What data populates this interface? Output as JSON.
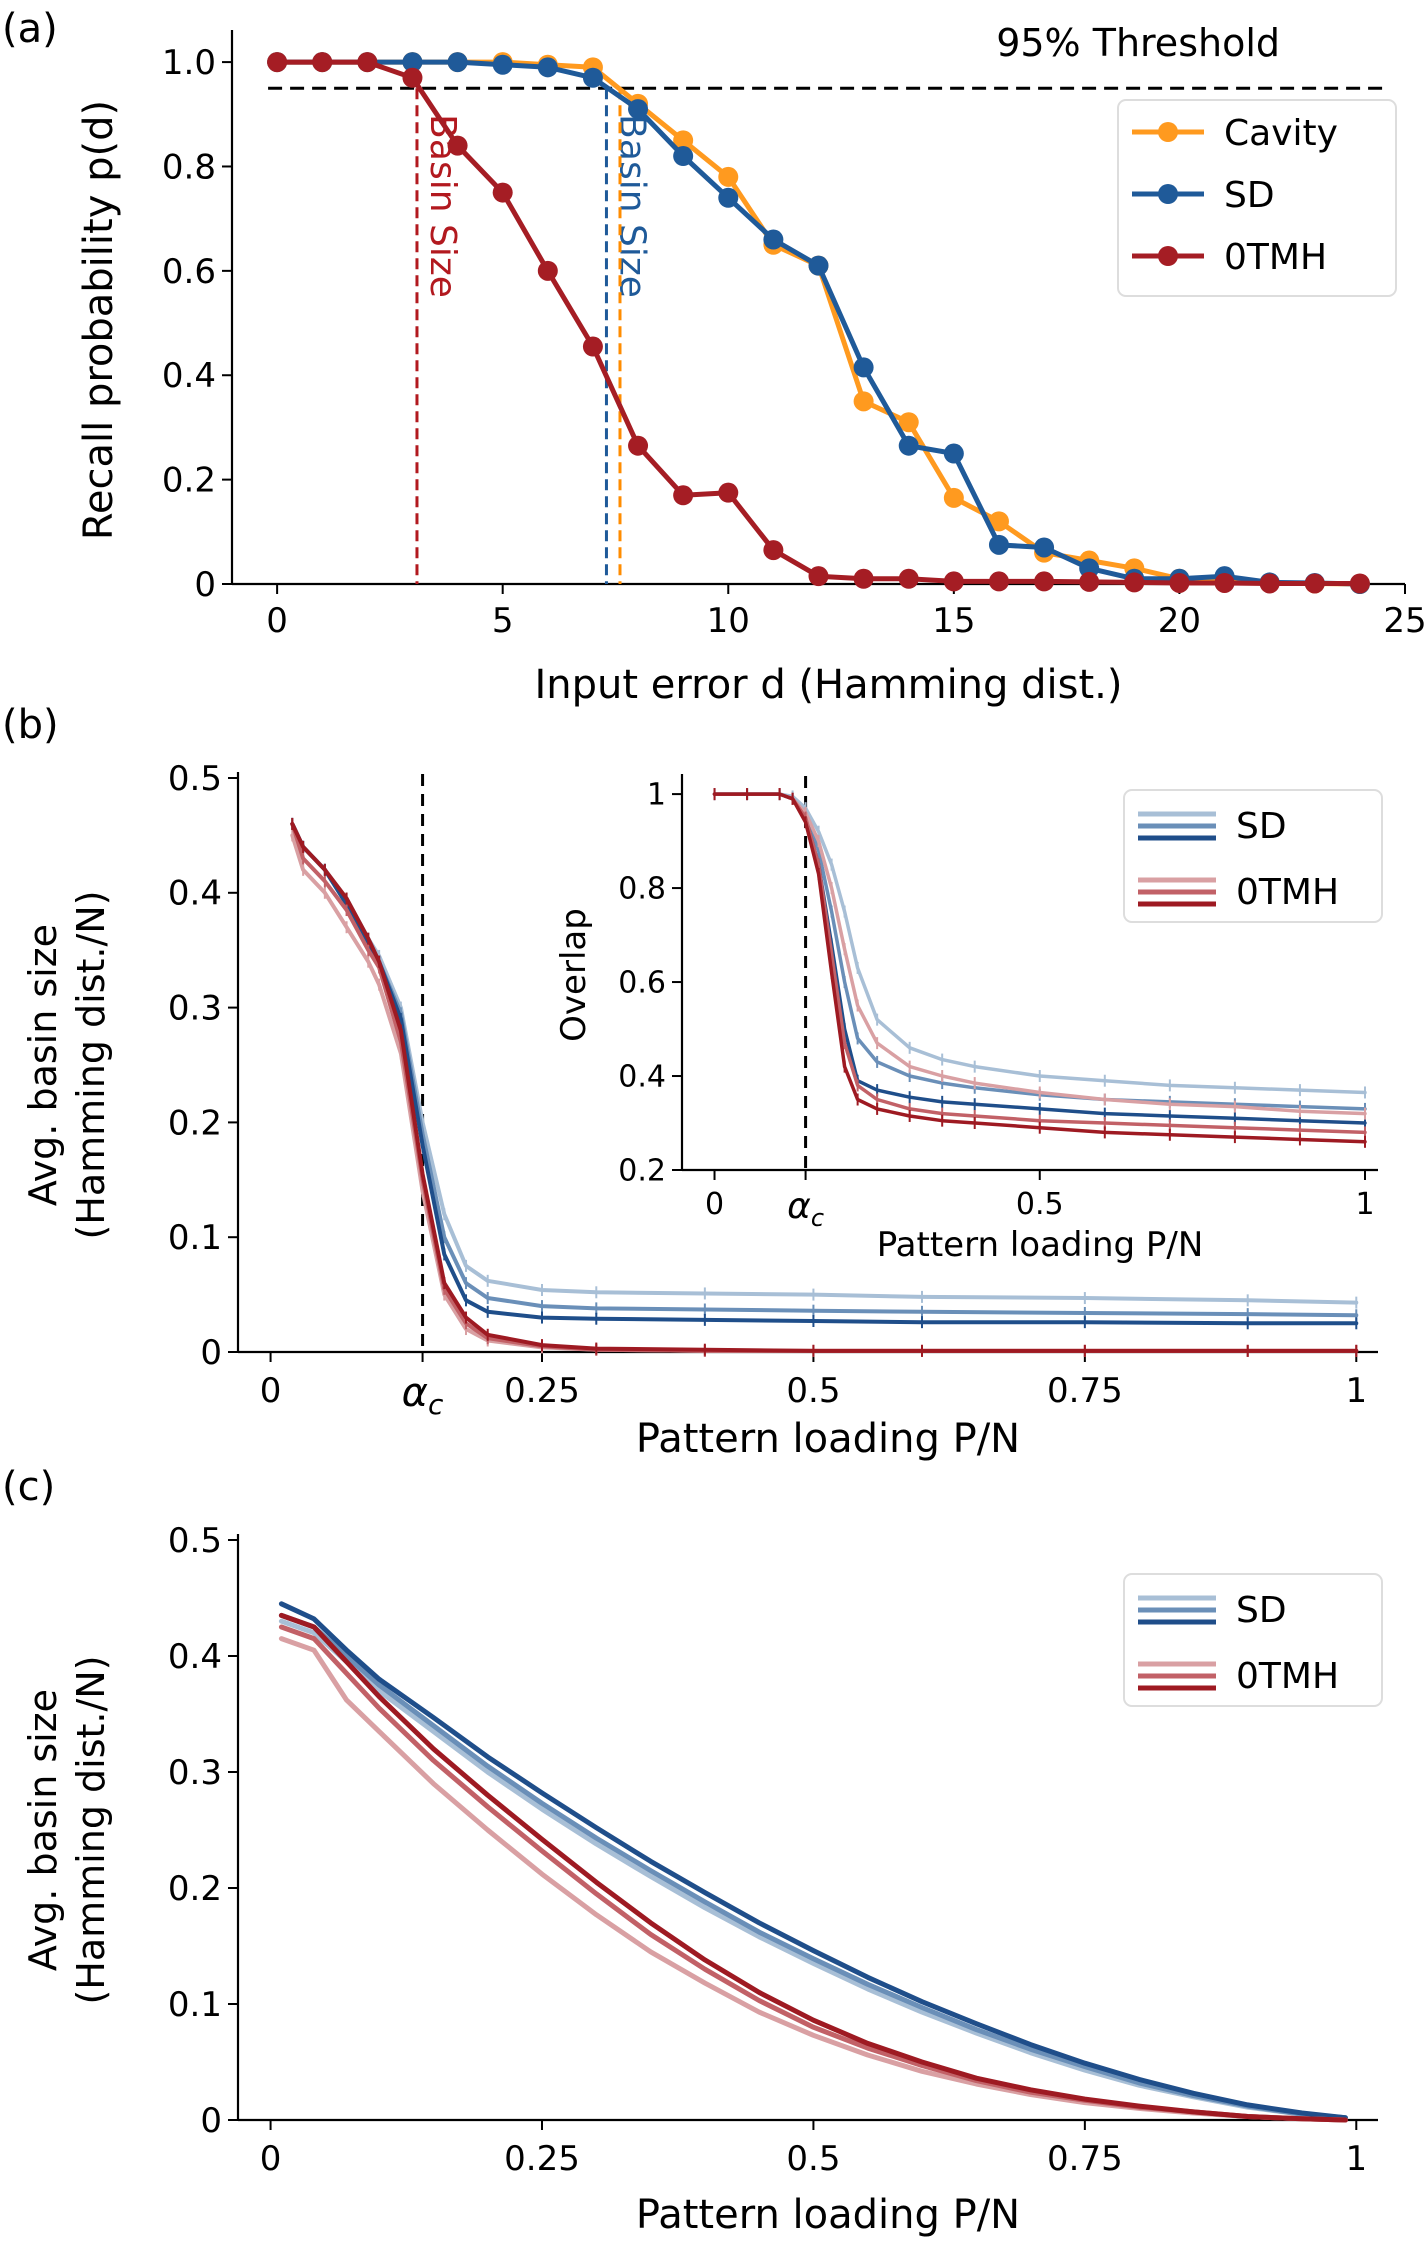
{
  "chart_data": [
    {
      "panel": "(a)",
      "type": "line",
      "xlabel": "Input error d (Hamming dist.)",
      "ylabel": "Recall probability p(d)",
      "xlim": [
        -1,
        25
      ],
      "ylim": [
        0,
        1.05
      ],
      "xticks": [
        0,
        5,
        10,
        15,
        20,
        25
      ],
      "yticks": [
        0,
        0.2,
        0.4,
        0.6,
        0.8,
        1.0
      ],
      "ytick_labels": [
        "0",
        "0.2",
        "0.4",
        "0.6",
        "0.8",
        "1.0"
      ],
      "threshold": {
        "value": 0.95,
        "label": "95% Threshold"
      },
      "basin_markers": [
        {
          "x": 3.1,
          "color": "#b2191f",
          "label": "Basin Size"
        },
        {
          "x": 7.3,
          "color": "#1f5a99",
          "label": "Basin Size"
        },
        {
          "x": 7.6,
          "color": "#ff8c00",
          "label": ""
        }
      ],
      "legend": {
        "position": "upper-right"
      },
      "series": [
        {
          "name": "Cavity",
          "color": "#ff9a1f",
          "x": [
            0,
            1,
            2,
            3,
            4,
            5,
            6,
            7,
            8,
            9,
            10,
            11,
            12,
            13,
            14,
            15,
            16,
            17,
            18,
            19,
            20,
            21,
            22,
            23,
            24
          ],
          "y": [
            1.0,
            1.0,
            1.0,
            1.0,
            1.0,
            1.0,
            0.995,
            0.99,
            0.92,
            0.85,
            0.78,
            0.65,
            0.61,
            0.35,
            0.31,
            0.165,
            0.12,
            0.06,
            0.045,
            0.03,
            0.01,
            0.005,
            0.002,
            0.001,
            0.0
          ]
        },
        {
          "name": "SD",
          "color": "#1f5a99",
          "x": [
            0,
            1,
            2,
            3,
            4,
            5,
            6,
            7,
            8,
            9,
            10,
            11,
            12,
            13,
            14,
            15,
            16,
            17,
            18,
            19,
            20,
            21,
            22,
            23,
            24
          ],
          "y": [
            1.0,
            1.0,
            1.0,
            1.0,
            1.0,
            0.995,
            0.99,
            0.97,
            0.91,
            0.82,
            0.74,
            0.66,
            0.61,
            0.415,
            0.265,
            0.25,
            0.075,
            0.07,
            0.03,
            0.01,
            0.01,
            0.015,
            0.003,
            0.002,
            0.0
          ]
        },
        {
          "name": "0TMH",
          "color": "#a51d24",
          "x": [
            0,
            1,
            2,
            3,
            4,
            5,
            6,
            7,
            8,
            9,
            10,
            11,
            12,
            13,
            14,
            15,
            16,
            17,
            18,
            19,
            20,
            21,
            22,
            23,
            24
          ],
          "y": [
            1.0,
            1.0,
            1.0,
            0.97,
            0.84,
            0.75,
            0.6,
            0.455,
            0.265,
            0.17,
            0.175,
            0.065,
            0.015,
            0.01,
            0.01,
            0.005,
            0.005,
            0.005,
            0.004,
            0.003,
            0.002,
            0.002,
            0.001,
            0.001,
            0.001
          ]
        }
      ]
    },
    {
      "panel": "(b)",
      "type": "line",
      "xlabel": "Pattern loading P/N",
      "ylabel": "Avg. basin size (Hamming dist./N)",
      "xlim": [
        -0.03,
        1.02
      ],
      "ylim": [
        0,
        0.5
      ],
      "xticks": [
        0,
        0.14,
        0.25,
        0.5,
        0.75,
        1
      ],
      "xtick_labels": [
        "0",
        "α_c",
        "0.25",
        "0.5",
        "0.75",
        "1"
      ],
      "yticks": [
        0,
        0.1,
        0.2,
        0.3,
        0.4,
        0.5
      ],
      "ytick_labels": [
        "0",
        "0.1",
        "0.2",
        "0.3",
        "0.4",
        "0.5"
      ],
      "alpha_c": 0.14,
      "legend": {
        "position": "upper-right",
        "entries": [
          "SD",
          "0TMH"
        ]
      },
      "x": [
        0.02,
        0.03,
        0.05,
        0.07,
        0.09,
        0.1,
        0.12,
        0.14,
        0.16,
        0.18,
        0.2,
        0.25,
        0.3,
        0.4,
        0.5,
        0.6,
        0.75,
        0.9,
        1.0
      ],
      "series": [
        {
          "name": "SD",
          "color": "#a8bfd6",
          "y": [
            0.46,
            0.44,
            0.42,
            0.395,
            0.36,
            0.345,
            0.3,
            0.2,
            0.12,
            0.075,
            0.062,
            0.054,
            0.052,
            0.051,
            0.05,
            0.048,
            0.047,
            0.045,
            0.043
          ]
        },
        {
          "name": "SD",
          "color": "#6a8fb8",
          "y": [
            0.46,
            0.44,
            0.42,
            0.39,
            0.36,
            0.34,
            0.295,
            0.19,
            0.1,
            0.06,
            0.047,
            0.04,
            0.038,
            0.037,
            0.036,
            0.035,
            0.034,
            0.033,
            0.032
          ]
        },
        {
          "name": "SD",
          "color": "#1f4e8a",
          "y": [
            0.46,
            0.44,
            0.42,
            0.39,
            0.355,
            0.34,
            0.29,
            0.18,
            0.085,
            0.045,
            0.035,
            0.03,
            0.029,
            0.028,
            0.027,
            0.026,
            0.026,
            0.025,
            0.025
          ]
        },
        {
          "name": "0TMH",
          "color": "#d9a0a3",
          "y": [
            0.45,
            0.42,
            0.4,
            0.37,
            0.34,
            0.32,
            0.26,
            0.14,
            0.05,
            0.02,
            0.01,
            0.004,
            0.002,
            0.001,
            0.001,
            0.001,
            0.001,
            0.001,
            0.001
          ]
        },
        {
          "name": "0TMH",
          "color": "#c26167",
          "y": [
            0.46,
            0.43,
            0.41,
            0.385,
            0.35,
            0.335,
            0.27,
            0.15,
            0.055,
            0.025,
            0.012,
            0.005,
            0.002,
            0.001,
            0.001,
            0.001,
            0.001,
            0.001,
            0.001
          ]
        },
        {
          "name": "0TMH",
          "color": "#9e1a22",
          "y": [
            0.46,
            0.44,
            0.42,
            0.395,
            0.36,
            0.34,
            0.28,
            0.155,
            0.06,
            0.03,
            0.015,
            0.006,
            0.003,
            0.002,
            0.001,
            0.001,
            0.001,
            0.001,
            0.001
          ]
        }
      ],
      "inset": {
        "xlabel": "Pattern loading P/N",
        "ylabel": "Overlap",
        "xlim": [
          -0.05,
          1.02
        ],
        "ylim": [
          0.2,
          1.03
        ],
        "xticks": [
          0,
          0.14,
          0.5,
          1
        ],
        "xtick_labels": [
          "0",
          "α_c",
          "0.5",
          "1"
        ],
        "yticks": [
          0.2,
          0.4,
          0.6,
          0.8,
          1.0
        ],
        "ytick_labels": [
          "0.2",
          "0.4",
          "0.6",
          "0.8",
          "1"
        ],
        "x": [
          0.0,
          0.05,
          0.1,
          0.12,
          0.14,
          0.16,
          0.18,
          0.2,
          0.22,
          0.25,
          0.3,
          0.35,
          0.4,
          0.5,
          0.6,
          0.7,
          0.8,
          0.9,
          1.0
        ],
        "series": [
          {
            "name": "SD",
            "color": "#a8bfd6",
            "y": [
              1.0,
              1.0,
              1.0,
              0.995,
              0.97,
              0.92,
              0.85,
              0.75,
              0.63,
              0.52,
              0.46,
              0.435,
              0.42,
              0.4,
              0.39,
              0.38,
              0.375,
              0.37,
              0.365
            ]
          },
          {
            "name": "SD",
            "color": "#6a8fb8",
            "y": [
              1.0,
              1.0,
              1.0,
              0.99,
              0.96,
              0.88,
              0.75,
              0.6,
              0.48,
              0.43,
              0.4,
              0.385,
              0.375,
              0.36,
              0.35,
              0.345,
              0.34,
              0.335,
              0.33
            ]
          },
          {
            "name": "SD",
            "color": "#1f4e8a",
            "y": [
              1.0,
              1.0,
              1.0,
              0.99,
              0.95,
              0.85,
              0.68,
              0.5,
              0.39,
              0.37,
              0.355,
              0.345,
              0.34,
              0.33,
              0.32,
              0.315,
              0.31,
              0.305,
              0.3
            ]
          },
          {
            "name": "0TMH",
            "color": "#d9a0a3",
            "y": [
              1.0,
              1.0,
              1.0,
              0.99,
              0.96,
              0.9,
              0.8,
              0.67,
              0.55,
              0.47,
              0.42,
              0.4,
              0.385,
              0.365,
              0.35,
              0.34,
              0.335,
              0.325,
              0.32
            ]
          },
          {
            "name": "0TMH",
            "color": "#c26167",
            "y": [
              1.0,
              1.0,
              1.0,
              0.99,
              0.95,
              0.85,
              0.66,
              0.47,
              0.38,
              0.35,
              0.33,
              0.32,
              0.315,
              0.305,
              0.3,
              0.295,
              0.29,
              0.285,
              0.28
            ]
          },
          {
            "name": "0TMH",
            "color": "#9e1a22",
            "y": [
              1.0,
              1.0,
              1.0,
              0.99,
              0.94,
              0.83,
              0.62,
              0.42,
              0.35,
              0.33,
              0.315,
              0.305,
              0.3,
              0.29,
              0.28,
              0.275,
              0.27,
              0.265,
              0.26
            ]
          }
        ]
      }
    },
    {
      "panel": "(c)",
      "type": "line",
      "xlabel": "Pattern loading P/N",
      "ylabel": "Avg. basin size (Hamming dist./N)",
      "xlim": [
        -0.03,
        1.02
      ],
      "ylim": [
        0,
        0.5
      ],
      "xticks": [
        0,
        0.25,
        0.5,
        0.75,
        1
      ],
      "xtick_labels": [
        "0",
        "0.25",
        "0.5",
        "0.75",
        "1"
      ],
      "yticks": [
        0,
        0.1,
        0.2,
        0.3,
        0.4,
        0.5
      ],
      "ytick_labels": [
        "0",
        "0.1",
        "0.2",
        "0.3",
        "0.4",
        "0.5"
      ],
      "legend": {
        "position": "upper-right",
        "entries": [
          "SD",
          "0TMH"
        ]
      },
      "x": [
        0.01,
        0.04,
        0.07,
        0.1,
        0.15,
        0.2,
        0.25,
        0.3,
        0.35,
        0.4,
        0.45,
        0.5,
        0.55,
        0.6,
        0.65,
        0.7,
        0.75,
        0.8,
        0.85,
        0.9,
        0.95,
        0.99
      ],
      "series": [
        {
          "name": "SD",
          "color": "#a8bfd6",
          "y": [
            0.43,
            0.42,
            0.395,
            0.37,
            0.335,
            0.3,
            0.268,
            0.238,
            0.21,
            0.183,
            0.158,
            0.135,
            0.113,
            0.093,
            0.075,
            0.058,
            0.043,
            0.03,
            0.02,
            0.011,
            0.005,
            0.002
          ]
        },
        {
          "name": "SD",
          "color": "#6a8fb8",
          "y": [
            0.435,
            0.425,
            0.4,
            0.375,
            0.34,
            0.305,
            0.273,
            0.243,
            0.215,
            0.188,
            0.162,
            0.139,
            0.117,
            0.097,
            0.078,
            0.061,
            0.046,
            0.032,
            0.021,
            0.012,
            0.005,
            0.002
          ]
        },
        {
          "name": "SD",
          "color": "#1f4e8a",
          "y": [
            0.445,
            0.432,
            0.405,
            0.38,
            0.347,
            0.313,
            0.282,
            0.252,
            0.223,
            0.196,
            0.17,
            0.146,
            0.123,
            0.102,
            0.083,
            0.065,
            0.049,
            0.035,
            0.023,
            0.013,
            0.006,
            0.002
          ]
        },
        {
          "name": "0TMH",
          "color": "#d9a0a3",
          "y": [
            0.415,
            0.405,
            0.362,
            0.335,
            0.29,
            0.25,
            0.212,
            0.177,
            0.145,
            0.118,
            0.093,
            0.073,
            0.056,
            0.042,
            0.031,
            0.022,
            0.015,
            0.01,
            0.006,
            0.003,
            0.001,
            0.0
          ]
        },
        {
          "name": "0TMH",
          "color": "#c26167",
          "y": [
            0.425,
            0.415,
            0.385,
            0.355,
            0.31,
            0.27,
            0.232,
            0.195,
            0.16,
            0.13,
            0.103,
            0.08,
            0.062,
            0.047,
            0.034,
            0.024,
            0.017,
            0.011,
            0.007,
            0.003,
            0.001,
            0.0
          ]
        },
        {
          "name": "0TMH",
          "color": "#9e1a22",
          "y": [
            0.435,
            0.425,
            0.395,
            0.365,
            0.32,
            0.28,
            0.242,
            0.205,
            0.17,
            0.138,
            0.11,
            0.086,
            0.066,
            0.05,
            0.036,
            0.026,
            0.018,
            0.012,
            0.007,
            0.003,
            0.001,
            0.0
          ]
        }
      ]
    }
  ]
}
